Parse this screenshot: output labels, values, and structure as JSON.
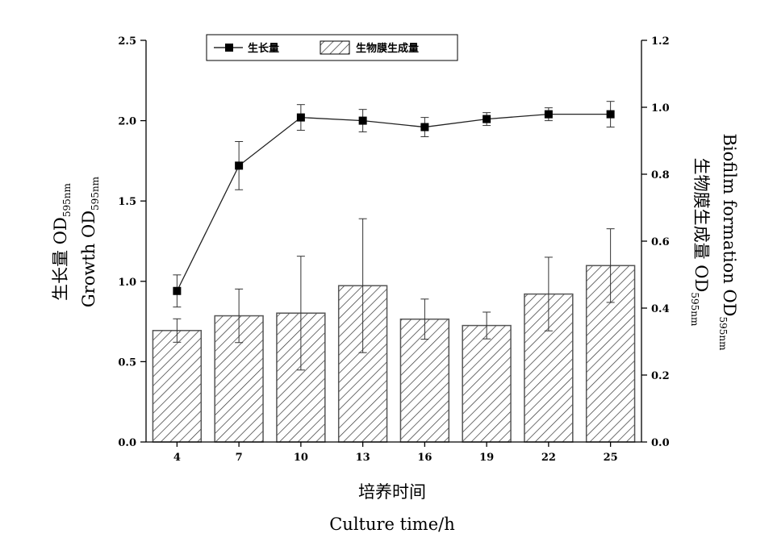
{
  "chart_data": {
    "type": "bar",
    "categories": [
      "4",
      "7",
      "10",
      "13",
      "16",
      "19",
      "22",
      "25"
    ],
    "xlabel_cn": "培养时间",
    "xlabel_en": "Culture time/h",
    "y_left": {
      "label_cn": "生长量 OD",
      "label_en": "Growth  OD",
      "label_sub": "595nm",
      "ylim": [
        0,
        2.5
      ],
      "ticks": [
        "0.0",
        "0.5",
        "1.0",
        "1.5",
        "2.0",
        "2.5"
      ]
    },
    "y_right": {
      "label_cn": "生物膜生成量 OD",
      "label_en": "Biofilm  formation  OD",
      "label_sub": "595nm",
      "ylim": [
        0,
        1.2
      ],
      "ticks": [
        "0.0",
        "0.2",
        "0.4",
        "0.6",
        "0.8",
        "1.0",
        "1.2"
      ]
    },
    "series": [
      {
        "name": "生长量",
        "kind": "line",
        "axis": "left",
        "marker": "square",
        "values": [
          0.94,
          1.72,
          2.02,
          2.0,
          1.96,
          2.01,
          2.04,
          2.04
        ],
        "errors": [
          0.1,
          0.15,
          0.08,
          0.07,
          0.06,
          0.04,
          0.04,
          0.08
        ]
      },
      {
        "name": "生物膜生成量",
        "kind": "bar",
        "axis": "right",
        "pattern": "hatched",
        "values": [
          0.333,
          0.377,
          0.385,
          0.467,
          0.367,
          0.348,
          0.442,
          0.527
        ],
        "errors": [
          0.035,
          0.08,
          0.17,
          0.2,
          0.06,
          0.04,
          0.11,
          0.11
        ]
      }
    ],
    "legend_position": "top-center",
    "grid": false
  }
}
